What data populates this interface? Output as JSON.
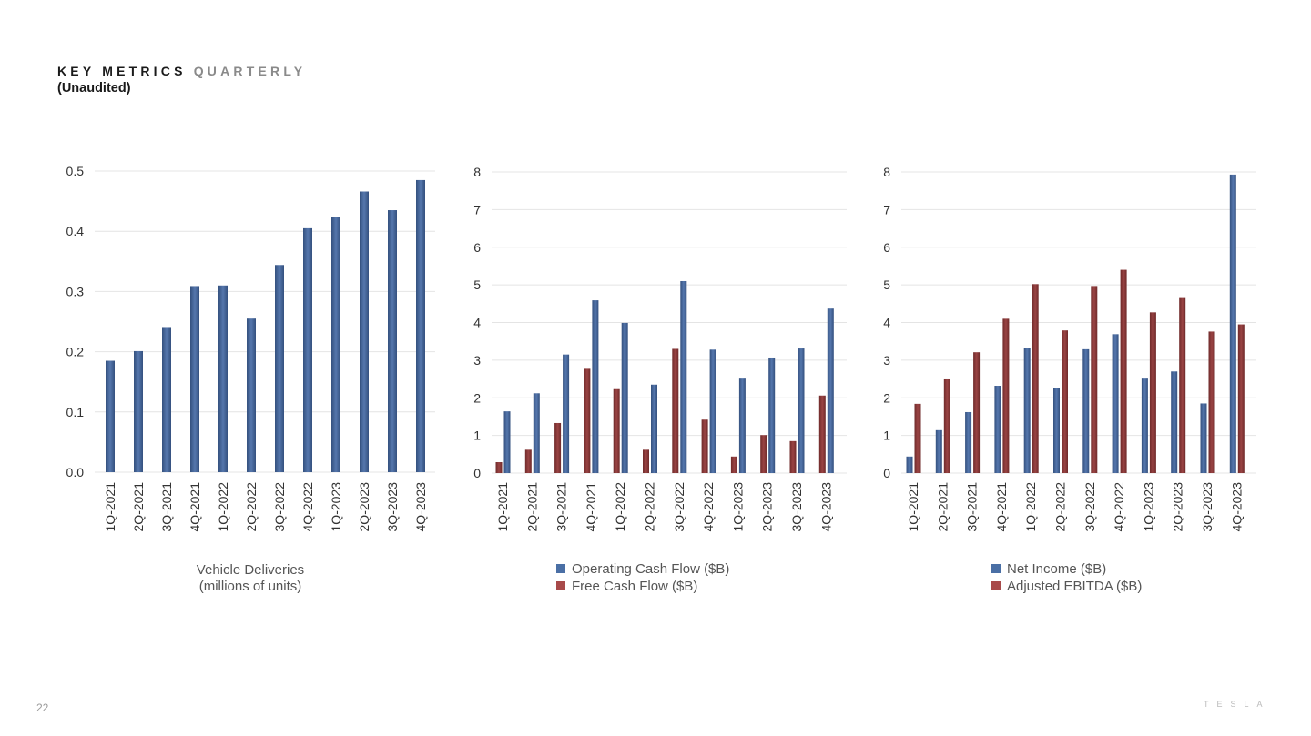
{
  "header": {
    "title_main": "KEY METRICS",
    "title_accent": "QUARTERLY",
    "subtitle": "(Unaudited)"
  },
  "footer": {
    "page_number": "22",
    "brand": "TESLA"
  },
  "colors": {
    "blue": "#4a6fa5",
    "red": "#8b3a3a",
    "grid": "#e4e4e4"
  },
  "chart_data": [
    {
      "type": "bar",
      "categories": [
        "1Q-2021",
        "2Q-2021",
        "3Q-2021",
        "4Q-2021",
        "1Q-2022",
        "2Q-2022",
        "3Q-2022",
        "4Q-2022",
        "1Q-2023",
        "2Q-2023",
        "3Q-2023",
        "4Q-2023"
      ],
      "series": [
        {
          "name": "Vehicle Deliveries (millions of units)",
          "values": [
            0.185,
            0.201,
            0.241,
            0.309,
            0.31,
            0.255,
            0.344,
            0.405,
            0.423,
            0.466,
            0.435,
            0.485
          ]
        }
      ],
      "yticks": [
        "0.0",
        "0.1",
        "0.2",
        "0.3",
        "0.4",
        "0.5"
      ],
      "ylim": [
        0,
        0.5
      ],
      "legend": [
        "Vehicle Deliveries",
        "(millions of units)"
      ]
    },
    {
      "type": "bar",
      "categories": [
        "1Q-2021",
        "2Q-2021",
        "3Q-2021",
        "4Q-2021",
        "1Q-2022",
        "2Q-2022",
        "3Q-2022",
        "4Q-2022",
        "1Q-2023",
        "2Q-2023",
        "3Q-2023",
        "4Q-2023"
      ],
      "series": [
        {
          "name": "Free Cash Flow ($B)",
          "values": [
            0.29,
            0.62,
            1.33,
            2.77,
            2.23,
            0.62,
            3.3,
            1.42,
            0.44,
            1.01,
            0.85,
            2.06
          ]
        },
        {
          "name": "Operating Cash Flow ($B)",
          "values": [
            1.64,
            2.12,
            3.15,
            4.59,
            3.99,
            2.35,
            5.1,
            3.28,
            2.51,
            3.07,
            3.31,
            4.37
          ]
        }
      ],
      "yticks": [
        "0",
        "1",
        "2",
        "3",
        "4",
        "5",
        "6",
        "7",
        "8"
      ],
      "ylim": [
        0,
        8
      ],
      "legend": [
        "Operating Cash Flow ($B)",
        "Free Cash Flow ($B)"
      ]
    },
    {
      "type": "bar",
      "categories": [
        "1Q-2021",
        "2Q-2021",
        "3Q-2021",
        "4Q-2021",
        "1Q-2022",
        "2Q-2022",
        "3Q-2022",
        "4Q-2022",
        "1Q-2023",
        "2Q-2023",
        "3Q-2023",
        "4Q-2023"
      ],
      "series": [
        {
          "name": "Net Income ($B)",
          "values": [
            0.44,
            1.14,
            1.62,
            2.32,
            3.32,
            2.26,
            3.29,
            3.69,
            2.51,
            2.7,
            1.85,
            7.93
          ]
        },
        {
          "name": "Adjusted EBITDA ($B)",
          "values": [
            1.84,
            2.49,
            3.21,
            4.1,
            5.02,
            3.79,
            4.97,
            5.4,
            4.27,
            4.65,
            3.76,
            3.95
          ]
        }
      ],
      "yticks": [
        "0",
        "1",
        "2",
        "3",
        "4",
        "5",
        "6",
        "7",
        "8"
      ],
      "ylim": [
        0,
        8
      ],
      "legend": [
        "Net Income ($B)",
        "Adjusted EBITDA ($B)"
      ]
    }
  ]
}
